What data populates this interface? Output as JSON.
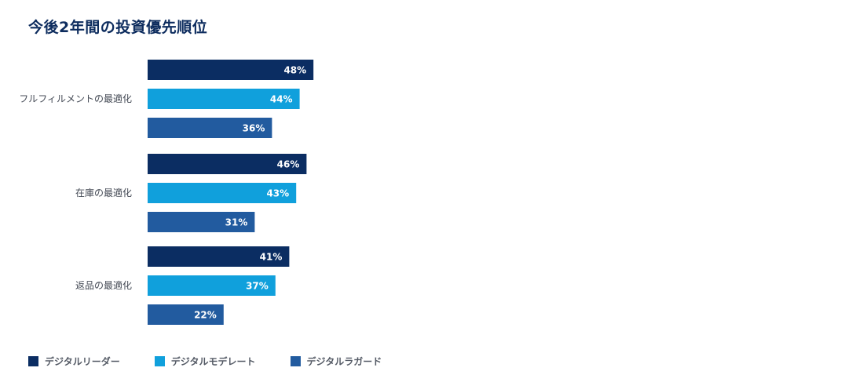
{
  "chart_data": {
    "type": "bar",
    "orientation": "horizontal",
    "title": "今後2年間の投資優先順位",
    "categories": [
      "フルフィルメントの最適化",
      "在庫の最適化",
      "返品の最適化"
    ],
    "series": [
      {
        "name": "デジタルリーダー",
        "color": "#0b2d62",
        "values": [
          48,
          46,
          41
        ]
      },
      {
        "name": "デジタルモデレート",
        "color": "#10a0dc",
        "values": [
          44,
          43,
          37
        ]
      },
      {
        "name": "デジタルラガード",
        "color": "#225b9f",
        "values": [
          36,
          31,
          22
        ]
      }
    ],
    "value_suffix": "%",
    "legend_position": "bottom-left",
    "grid": false
  }
}
